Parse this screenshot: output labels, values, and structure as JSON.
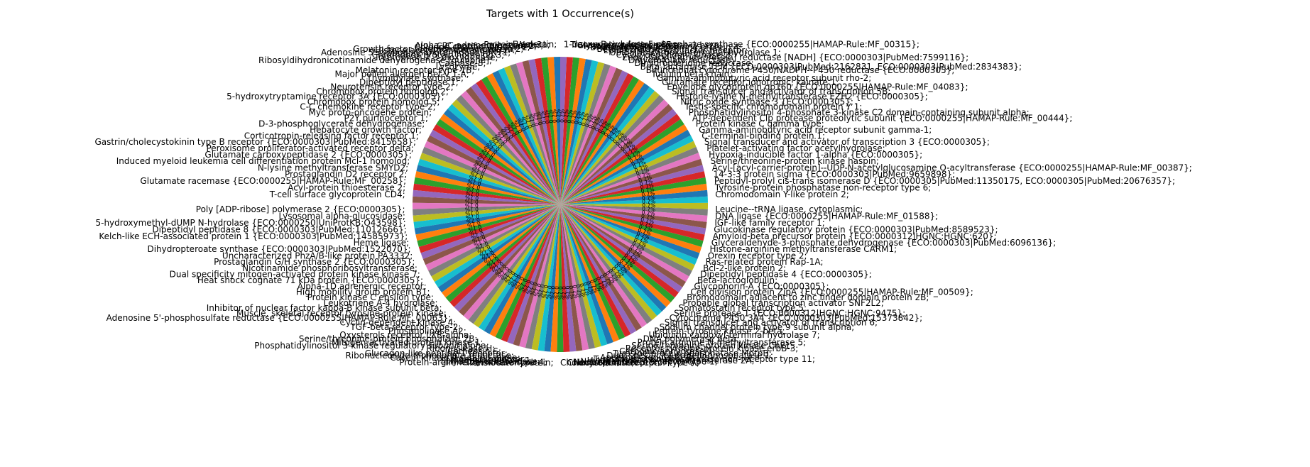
{
  "chart_data": {
    "type": "pie",
    "title": "Targets with 1 Occurrence(s)",
    "xlabel": "",
    "ylabel": "",
    "slice_value": 1,
    "slice_percent_label": "0.7%",
    "legend": "none",
    "grid": false,
    "start_angle_deg": 90,
    "direction": "counterclockwise",
    "colors": [
      "#1f77b4",
      "#ff7f0e",
      "#2ca02c",
      "#d62728",
      "#9467bd",
      "#8c564b",
      "#e377c2",
      "#7f7f7f",
      "#bcbd22",
      "#17becf"
    ],
    "labels": [
      "E-selectin;",
      "Protein Wnt-3a;",
      "Alpha-2C adrenergic receptor;",
      "C-C motif chemokine 2;",
      "Chloride channel protein 2;",
      "Growth factor receptor-bound protein 2;",
      "Histone acetyltransferase KAT2A;",
      "Adenosine 5'-monophosphoramidase HINT1;",
      "Chromobox protein homolog 3;",
      "Tryptophan 2,3-dioxygenase;",
      "Ribosyldihydronicotinamide dehydrogenase [quinone];",
      "Caspase-8;",
      "Lysozyme;",
      "Melatonin receptor type 1B;",
      "Major pollen allergen Bet v 1-A;",
      "Thymidylate synthase;",
      "Dipeptidyl peptidase 1;",
      "Neurotensin receptor type 2;",
      "Chromobox protein homolog 2;",
      "5-hydroxytryptamine receptor 3A {ECO:0000305};",
      "Chromobox protein homolog 5;",
      "C-C chemokine receptor type 2;",
      "Myc proto-oncogene protein;",
      "P2Y purinoceptor 1;",
      "D-3-phosphoglycerate dehydrogenase;",
      "Hepatocyte growth factor;",
      "Corticotropin-releasing factor receptor 1;",
      "Gastrin/cholecystokinin type B receptor {ECO:0000303|PubMed:8415658};",
      "Peroxisome proliferator-activated receptor delta;",
      "Glutamate carboxypeptidase 2 {ECO:0000305};",
      "Induced myeloid leukemia cell differentiation protein Mcl-1 homolog;",
      "N-lysine methyltransferase SMYD2;",
      "Prostaglandin D2 receptor 2;",
      "Glutamate racemase {ECO:0000255|HAMAP-Rule:MF_00258};",
      "Acyl-protein thioesterase 2;",
      "T-cell surface glycoprotein CD4;",
      "Poly [ADP-ribose] polymerase 2 {ECO:0000305};",
      "Lysosomal alpha-glucosidase;",
      "5-hydroxymethyl-dUMP N-hydrolase {ECO:0000250|UniProtKB:O43598};",
      "Dipeptidyl peptidase 8 {ECO:0000303|PubMed:11012666};",
      "Kelch-like ECH-associated protein 1 {ECO:0000303|PubMed:14585973};",
      "Heme ligase;",
      "Dihydropteroate synthase {ECO:0000303|PubMed:1522070};",
      "Uncharacterized PhzA/B-like protein PA3332;",
      "Prostaglandin G/H synthase 2 {ECO:0000305};",
      "Nicotinamide phosphoribosyltransferase;",
      "Dual specificity mitogen-activated protein kinase kinase 7;",
      "Heat shock cognate 71 kDa protein {ECO:0000305};",
      "Alpha-1D adrenergic receptor;",
      "High mobility group protein B1;",
      "Protein kinase C epsilon type;",
      "Leukotriene A-4 hydrolase;",
      "Inhibitor of nuclear factor kappa-B kinase subunit beta;",
      "Muscle, skeletal receptor tyrosine-protein kinase;",
      "Adenosine 5'-phosphosulfate reductase {ECO:0000255|HAMAP-Rule:MF_00063};",
      "Cyclin-dependent kinase 4;",
      "TGF-beta receptor type-2;",
      "Phospholipase A2;",
      "Oxysterols receptor LXR-alpha;",
      "Serine/threonine-protein phosphatase 2B;",
      "Mitogen-activated protein kinase 1;",
      "Phosphatidylinositol 3-kinase regulatory subunit alpha;",
      "Ribonuclease H;",
      "Cathepsin S;",
      "Glucagon-like peptide 1 receptor;",
      "Ribonucleoside-diphosphate reductase;",
      "Casein kinase II subunit alpha;",
      "Thrombin receptor;",
      "Sphingosine kinase 1;",
      "Hydroxy-acid oxidase;",
      "Protein-arginine deiminase type-4;",
      "Translocator protein;",
      "Cholecystokinin receptor type A;",
      "Chondroitinase;",
      "Nociceptin receptor;",
      "Neuropeptide Y receptor type 1;",
      "Histone-lysine N-methyltransferase 2A;",
      "Tyrosine-protein phosphatase non-receptor type 11;",
      "Apoptosis regulator Bcl-2;",
      "Dual specificity protein phosphatase 1;",
      "Tyrosine-protein phosphatase MptpB;",
      "Carbonic anhydrase 1;",
      "Receptor tyrosine-protein kinase erbB-3;",
      "Serine/threonine-protein kinase Chk1;",
      "Protein arginine N-methyltransferase 5;",
      "DNA polymerase beta;",
      "Ubiquitin carboxyl-terminal hydrolase 7;",
      "Protein-tyrosine kinase 2-beta;",
      "Sodium channel protein type 9 subunit alpha;",
      "Signal transducer and activator of transcription 6;",
      "Cytochrome P450 3A4 {ECO:0000303|PubMed:15373842};",
      "Serine protease 1 {ECO:0000312|HGNC:HGNC:9475};",
      "Somatostatin receptor type 5;",
      "Probable global transcription activator SNF2L2;",
      "Bromodomain adjacent to zinc finger domain protein 2B;",
      "Cell division protein ZipA {ECO:0000255|HAMAP-Rule:MF_00509};",
      "Glycophorin-A {ECO:0000305};",
      "Beta-lactoglobulin;",
      "Dipeptidyl peptidase 4 {ECO:0000305};",
      "Bcl-2-like protein 2;",
      "Ras-related protein Rap-1A;",
      "Orexin receptor type 2;",
      "Histone-arginine methyltransferase CARM1;",
      "Glyceraldehyde-3-phosphate dehydrogenase {ECO:0000303|PubMed:6096136};",
      "Amyloid-beta precursor protein {ECO:0000312|HGNC:HGNC:620};",
      "Glucokinase regulatory protein {ECO:0000303|PubMed:8589523};",
      "IGF-like family receptor 1;",
      "DNA ligase {ECO:0000255|HAMAP-Rule:MF_01588};",
      "Leucine--tRNA ligase, cytoplasmic;",
      "Chromodomain Y-like protein 2;",
      "Tyrosine-protein phosphatase non-receptor type 6;",
      "Peptidyl-prolyl cis-trans isomerase D {ECO:0000305|PubMed:11350175, ECO:0000305|PubMed:20676357};",
      "14-3-3 protein sigma {ECO:0000303|PubMed:9659898};",
      "Acyl-[acyl-carrier-protein]--UDP-N-acetylglucosamine O-acyltransferase {ECO:0000255|HAMAP-Rule:MF_00387};",
      "Serine/threonine-protein kinase haspin;",
      "Hypoxia-inducible factor 1-alpha {ECO:0000305};",
      "Platelet-activating factor acetylhydrolase;",
      "Signal transducer and activator of transcription 3 {ECO:0000305};",
      "C-terminal-binding protein 1;",
      "Gamma-aminobutyric acid receptor subunit gamma-1;",
      "Protein kinase C gamma type;",
      "ATP-dependent Clp protease proteolytic subunit {ECO:0000255|HAMAP-Rule:MF_00444};",
      "Phosphatidylinositol 4-phosphate 3-kinase C2 domain-containing subunit alpha;",
      "Testis-specific chromodomain protein Y 1;",
      "Nitric oxide synthase 3 {ECO:0000305};",
      "Histone-lysine N-methyltransferase EZH2 {ECO:0000305};",
      "Signal transducer and activator of transcription 5B;",
      "Envelope glycoprotein gp160 {ECO:0000255|HAMAP-Rule:MF_04083};",
      "Glutamate receptor ionotropic, kainate 1;",
      "Gamma-aminobutyric acid receptor subunit rho-2;",
      "Tubulin beta chain;",
      "Bifunctional cytochrome P450/NADPH--P450 reductase {ECO:0000305};",
      "Beta-lactamase TEM {ECO:0000303|PubMed:2162831, ECO:0000303|PubMed:2834383};",
      "Dihydropteridine reductase;",
      "Dihydrofolate reductase;",
      "Enoyl-[acyl-carrier-protein] reductase [NADH] {ECO:0000303|PubMed:7599116};",
      "Cyclin-dependent kinase 2;",
      "Ubiquitin carboxyl-terminal hydrolase 1;",
      "Epidermal growth factor receptor;",
      "Beta-secretase 2;",
      "Bromodomain-containing protein 4;",
      "Histone deacetylase 8;",
      "Glycogen synthase kinase-3 beta;",
      "Transcription factor p65;",
      "1-deoxy-D-xylulose 5-phosphate synthase {ECO:0000255|HAMAP-Rule:MF_00315};"
    ]
  }
}
